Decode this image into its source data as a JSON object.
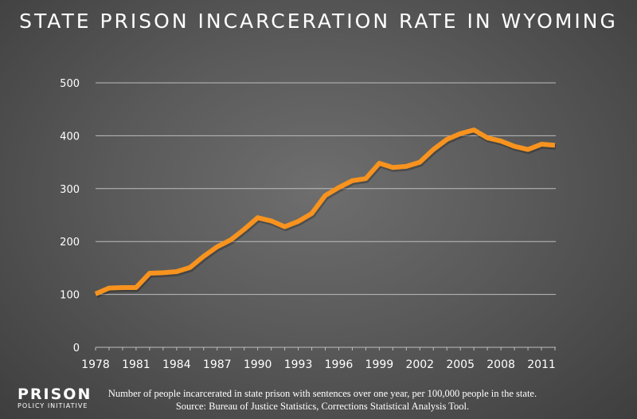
{
  "chart_data": {
    "type": "line",
    "title": "STATE PRISON INCARCERATION RATE IN WYOMING",
    "x": [
      1978,
      1979,
      1980,
      1981,
      1982,
      1983,
      1984,
      1985,
      1986,
      1987,
      1988,
      1989,
      1990,
      1991,
      1992,
      1993,
      1994,
      1995,
      1996,
      1997,
      1998,
      1999,
      2000,
      2001,
      2002,
      2003,
      2004,
      2005,
      2006,
      2007,
      2008,
      2009,
      2010,
      2011,
      2012
    ],
    "values": [
      101,
      112,
      113,
      113,
      140,
      141,
      143,
      151,
      172,
      190,
      203,
      223,
      245,
      239,
      228,
      238,
      253,
      287,
      302,
      315,
      319,
      348,
      340,
      342,
      350,
      374,
      393,
      404,
      411,
      396,
      390,
      380,
      374,
      384,
      382
    ],
    "xticks": [
      "1978",
      "1981",
      "1984",
      "1987",
      "1990",
      "1993",
      "1996",
      "1999",
      "2002",
      "2005",
      "2008",
      "2011"
    ],
    "yticks": [
      "0",
      "100",
      "200",
      "300",
      "400",
      "500"
    ],
    "ylim": [
      0,
      500
    ],
    "grid": true,
    "line_color": "#f7931e",
    "xlabel": "",
    "ylabel": ""
  },
  "footer": {
    "note": "Number of people incarcerated in state prison with sentences over one year, per 100,000 people in the state.",
    "source": "Source: Bureau of Justice Statistics, Corrections Statistical Analysis Tool."
  },
  "logo": {
    "line1": "PRISON",
    "line2": "POLICY INITIATIVE"
  }
}
